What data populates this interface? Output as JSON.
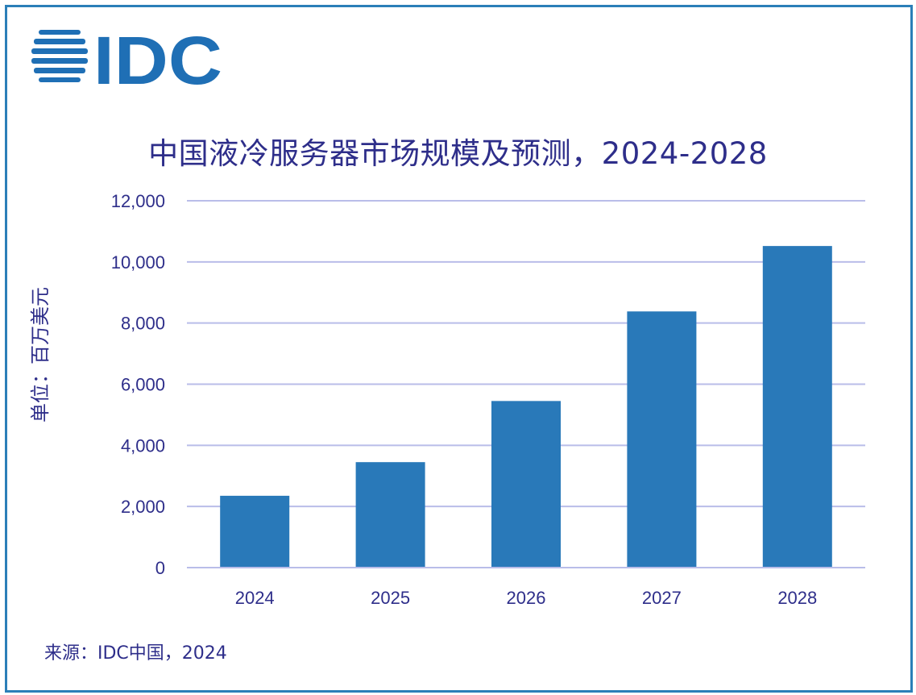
{
  "logo": {
    "text": "IDC",
    "color": "#1f6fb5"
  },
  "title": "中国液冷服务器市场规模及预测，2024-2028",
  "source": "来源：IDC中国，2024",
  "chart_data": {
    "type": "bar",
    "title": "中国液冷服务器市场规模及预测，2024-2028",
    "ylabel": "单位：百万美元",
    "xlabel": "",
    "categories": [
      "2024",
      "2025",
      "2026",
      "2027",
      "2028"
    ],
    "values": [
      2350,
      3450,
      5450,
      8380,
      10520
    ],
    "ylim": [
      0,
      12000
    ],
    "yticks": [
      0,
      2000,
      4000,
      6000,
      8000,
      10000,
      12000
    ],
    "ytick_labels": [
      "0",
      "2,000",
      "4,000",
      "6,000",
      "8,000",
      "10,000",
      "12,000"
    ],
    "grid": true,
    "bar_color": "#2979b9",
    "grid_color": "#b9bde9",
    "text_color": "#2e2e8a"
  }
}
